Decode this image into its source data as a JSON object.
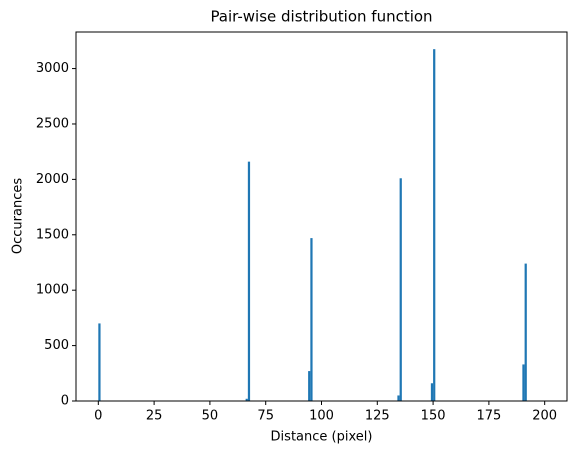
{
  "chart_data": {
    "type": "histogram",
    "title": "Pair-wise distribution function",
    "x_label": "Distance (pixel)",
    "y_label": "Occurances",
    "color": "#1f77b4",
    "bins": [
      0,
      1,
      2,
      3,
      4,
      5,
      6,
      7,
      8,
      9,
      10,
      11,
      12,
      13,
      14,
      15,
      16,
      17,
      18,
      19,
      20,
      21,
      22,
      23,
      24,
      25,
      26,
      27,
      28,
      29,
      30,
      31,
      32,
      33,
      34,
      35,
      36,
      37,
      38,
      39,
      40,
      41,
      42,
      43,
      44,
      45,
      46,
      47,
      48,
      49,
      50,
      51,
      52,
      53,
      54,
      55,
      56,
      57,
      58,
      59,
      60,
      61,
      62,
      63,
      64,
      65,
      66,
      67,
      68,
      69,
      70,
      71,
      72,
      73,
      74,
      75,
      76,
      77,
      78,
      79,
      80,
      81,
      82,
      83,
      84,
      85,
      86,
      87,
      88,
      89,
      90,
      91,
      92,
      93,
      94,
      95,
      96,
      97,
      98,
      99,
      100,
      101,
      102,
      103,
      104,
      105,
      106,
      107,
      108,
      109,
      110,
      111,
      112,
      113,
      114,
      115,
      116,
      117,
      118,
      119,
      120,
      121,
      122,
      123,
      124,
      125,
      126,
      127,
      128,
      129,
      130,
      131,
      132,
      133,
      134,
      135,
      136,
      137,
      138,
      139,
      140,
      141,
      142,
      143,
      144,
      145,
      146,
      147,
      148,
      149,
      150,
      151,
      152,
      153,
      154,
      155,
      156,
      157,
      158,
      159,
      160,
      161,
      162,
      163,
      164,
      165,
      166,
      167,
      168,
      169,
      170,
      171,
      172,
      173,
      174,
      175,
      176,
      177,
      178,
      179,
      180,
      181,
      182,
      183,
      184,
      185,
      186,
      187,
      188,
      189,
      190,
      191,
      192,
      193,
      194,
      195,
      196,
      197,
      198,
      199,
      200
    ],
    "values": [
      700,
      0,
      0,
      0,
      0,
      0,
      0,
      0,
      0,
      0,
      0,
      0,
      0,
      0,
      0,
      0,
      0,
      0,
      0,
      0,
      0,
      0,
      0,
      0,
      0,
      0,
      0,
      0,
      0,
      0,
      0,
      0,
      0,
      0,
      0,
      0,
      0,
      0,
      0,
      0,
      0,
      0,
      0,
      0,
      0,
      0,
      0,
      0,
      0,
      0,
      0,
      0,
      0,
      0,
      0,
      0,
      0,
      0,
      0,
      0,
      0,
      0,
      0,
      0,
      0,
      0,
      20,
      2160,
      0,
      0,
      0,
      0,
      0,
      0,
      0,
      0,
      0,
      0,
      0,
      0,
      0,
      0,
      0,
      0,
      0,
      0,
      0,
      0,
      0,
      0,
      0,
      0,
      0,
      0,
      270,
      1470,
      0,
      0,
      0,
      0,
      0,
      0,
      0,
      0,
      0,
      0,
      0,
      0,
      0,
      0,
      0,
      0,
      0,
      0,
      0,
      0,
      0,
      0,
      0,
      0,
      0,
      0,
      0,
      0,
      0,
      0,
      0,
      0,
      0,
      0,
      0,
      0,
      0,
      0,
      50,
      2010,
      0,
      0,
      0,
      0,
      0,
      0,
      0,
      0,
      0,
      0,
      0,
      0,
      0,
      160,
      3175,
      0,
      0,
      0,
      0,
      0,
      0,
      0,
      0,
      0,
      0,
      0,
      0,
      0,
      0,
      0,
      0,
      0,
      0,
      0,
      0,
      0,
      0,
      0,
      0,
      0,
      0,
      0,
      0,
      0,
      0,
      0,
      0,
      0,
      0,
      0,
      0,
      0,
      0,
      0,
      330,
      1240,
      0,
      0,
      0,
      0,
      0,
      0,
      0,
      0
    ],
    "xlim": [
      -10,
      210
    ],
    "xticks": [
      0,
      25,
      50,
      75,
      100,
      125,
      150,
      175,
      200
    ],
    "ylim": [
      0,
      3330
    ],
    "yticks": [
      0,
      500,
      1000,
      1500,
      2000,
      2500,
      3000
    ]
  }
}
